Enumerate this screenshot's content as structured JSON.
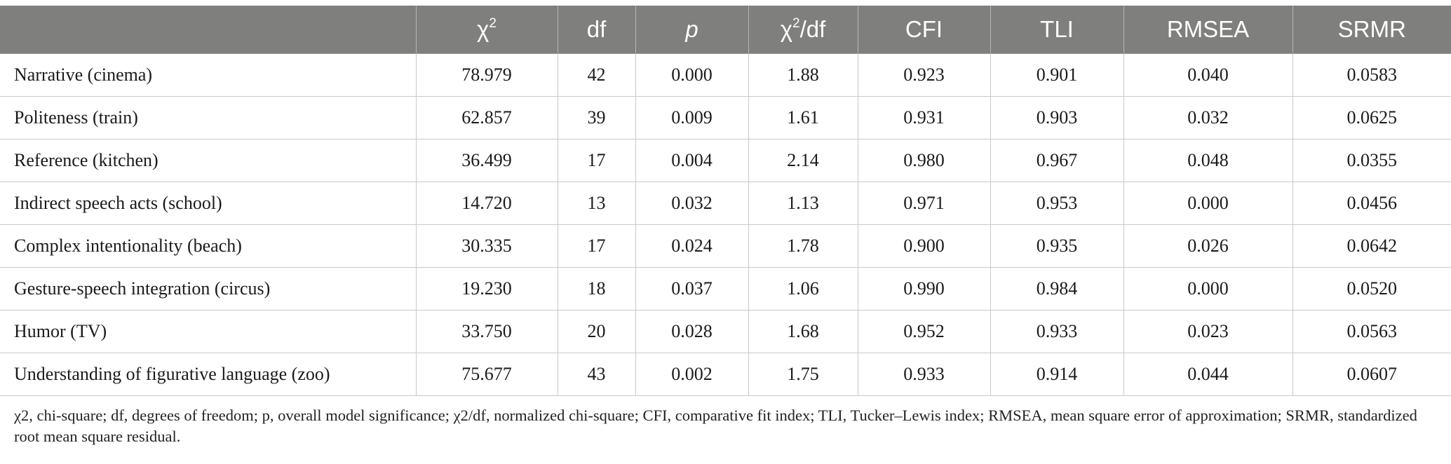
{
  "table": {
    "columns": [
      "",
      "χ²",
      "df",
      "p",
      "χ²/df",
      "CFI",
      "TLI",
      "RMSEA",
      "SRMR"
    ],
    "rows": [
      [
        "Narrative (cinema)",
        "78.979",
        "42",
        "0.000",
        "1.88",
        "0.923",
        "0.901",
        "0.040",
        "0.0583"
      ],
      [
        "Politeness (train)",
        "62.857",
        "39",
        "0.009",
        "1.61",
        "0.931",
        "0.903",
        "0.032",
        "0.0625"
      ],
      [
        "Reference (kitchen)",
        "36.499",
        "17",
        "0.004",
        "2.14",
        "0.980",
        "0.967",
        "0.048",
        "0.0355"
      ],
      [
        "Indirect speech acts (school)",
        "14.720",
        "13",
        "0.032",
        "1.13",
        "0.971",
        "0.953",
        "0.000",
        "0.0456"
      ],
      [
        "Complex intentionality (beach)",
        "30.335",
        "17",
        "0.024",
        "1.78",
        "0.900",
        "0.935",
        "0.026",
        "0.0642"
      ],
      [
        "Gesture-speech integration (circus)",
        "19.230",
        "18",
        "0.037",
        "1.06",
        "0.990",
        "0.984",
        "0.000",
        "0.0520"
      ],
      [
        "Humor (TV)",
        "33.750",
        "20",
        "0.028",
        "1.68",
        "0.952",
        "0.933",
        "0.023",
        "0.0563"
      ],
      [
        "Understanding of figurative language (zoo)",
        "75.677",
        "43",
        "0.002",
        "1.75",
        "0.933",
        "0.914",
        "0.044",
        "0.0607"
      ]
    ]
  },
  "footnote": "χ2, chi-square; df, degrees of freedom; p, overall model significance; χ2/df, normalized chi-square; CFI, comparative fit index; TLI, Tucker–Lewis index; RMSEA, mean square error of approximation; SRMR, standardized root mean square residual."
}
